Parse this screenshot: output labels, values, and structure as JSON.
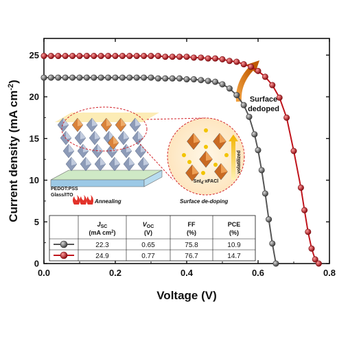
{
  "chart_data": {
    "type": "line",
    "title": "",
    "xlabel": "Voltage (V)",
    "ylabel": "Current density (mA cm",
    "ylabel_sup": "-2",
    "ylabel_close": ")",
    "xlim": [
      0.0,
      0.8
    ],
    "ylim": [
      0,
      27
    ],
    "xticks": [
      0.0,
      0.2,
      0.4,
      0.6,
      0.8
    ],
    "xtick_labels": [
      "0.0",
      "0.2",
      "0.4",
      "0.6",
      "0.8"
    ],
    "yticks": [
      0,
      5,
      10,
      15,
      20,
      25
    ],
    "ytick_labels": [
      "0",
      "5",
      "10",
      "15",
      "20",
      "25"
    ],
    "grid": false,
    "series": [
      {
        "color": "#555555",
        "marker_fill": "#6e6e6e",
        "x": [
          0.0,
          0.02,
          0.04,
          0.06,
          0.08,
          0.1,
          0.12,
          0.14,
          0.16,
          0.18,
          0.2,
          0.22,
          0.24,
          0.26,
          0.28,
          0.3,
          0.32,
          0.34,
          0.36,
          0.38,
          0.4,
          0.42,
          0.44,
          0.46,
          0.48,
          0.5,
          0.52,
          0.54,
          0.56,
          0.575,
          0.59,
          0.6,
          0.61,
          0.62,
          0.63,
          0.64,
          0.65
        ],
        "y": [
          22.3,
          22.3,
          22.3,
          22.3,
          22.3,
          22.3,
          22.3,
          22.3,
          22.3,
          22.3,
          22.3,
          22.3,
          22.3,
          22.3,
          22.3,
          22.3,
          22.2,
          22.2,
          22.2,
          22.2,
          22.1,
          22.1,
          22.0,
          21.9,
          21.8,
          21.5,
          21.0,
          20.2,
          19.0,
          17.6,
          15.5,
          13.6,
          11.2,
          8.4,
          5.3,
          2.4,
          0.0
        ]
      },
      {
        "color": "#c0141c",
        "marker_fill": "#c0141c",
        "x": [
          0.0,
          0.02,
          0.04,
          0.06,
          0.08,
          0.1,
          0.12,
          0.14,
          0.16,
          0.18,
          0.2,
          0.22,
          0.24,
          0.26,
          0.28,
          0.3,
          0.32,
          0.34,
          0.36,
          0.38,
          0.4,
          0.42,
          0.44,
          0.46,
          0.48,
          0.5,
          0.52,
          0.54,
          0.56,
          0.58,
          0.6,
          0.62,
          0.64,
          0.66,
          0.68,
          0.7,
          0.72,
          0.73,
          0.74,
          0.75,
          0.76,
          0.77
        ],
        "y": [
          24.9,
          24.9,
          24.9,
          24.9,
          24.9,
          24.9,
          24.9,
          24.9,
          24.9,
          24.9,
          24.9,
          24.9,
          24.9,
          24.9,
          24.9,
          24.9,
          24.9,
          24.8,
          24.8,
          24.8,
          24.8,
          24.7,
          24.7,
          24.6,
          24.6,
          24.5,
          24.3,
          24.2,
          23.9,
          23.6,
          23.1,
          22.4,
          21.4,
          19.9,
          17.5,
          13.5,
          9.1,
          6.4,
          3.8,
          1.8,
          0.5,
          0.0
        ]
      }
    ],
    "table": {
      "headers": [
        {
          "main": "J",
          "sub": "SC",
          "line2": "(mA cm",
          "line2_sup": "2",
          "line2_close": ")"
        },
        {
          "main": "V",
          "sub": "OC",
          "line2": "(V)"
        },
        {
          "main": "FF",
          "line2": "(%)"
        },
        {
          "main": "PCE",
          "line2": "(%)"
        }
      ],
      "rows": [
        {
          "color": "#6e6e6e",
          "values": [
            "22.3",
            "0.65",
            "75.8",
            "10.9"
          ]
        },
        {
          "color": "#c0141c",
          "values": [
            "24.9",
            "0.77",
            "76.7",
            "14.7"
          ]
        }
      ]
    },
    "annotations": {
      "surface_dedoped_line1": "Surface",
      "surface_dedoped_line2": "dedoped",
      "inset_substrate_line1": "PEDOT:PSS",
      "inset_substrate_line2": "Glass/ITO",
      "annealing": "Annealing",
      "surface_dedoping": "Surface de-doping",
      "sni4_formula": "SnI",
      "sni4_sub": "4",
      "sni4_rest": "·xFACl",
      "volatilized": "volatilized"
    }
  }
}
